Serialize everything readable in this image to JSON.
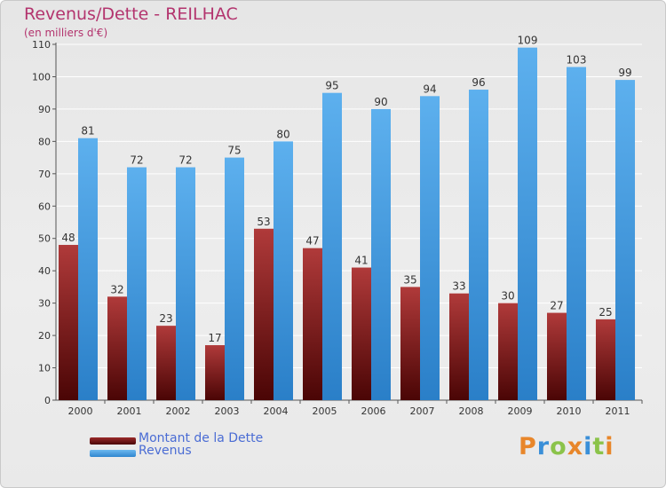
{
  "chart_data": {
    "type": "bar",
    "title": "Revenus/Dette - REILHAC",
    "subtitle": "(en milliers d'€)",
    "categories": [
      "2000",
      "2001",
      "2002",
      "2003",
      "2004",
      "2005",
      "2006",
      "2007",
      "2008",
      "2009",
      "2010",
      "2011"
    ],
    "series": [
      {
        "name": "Montant de la Dette",
        "color": "#7a1a1a",
        "values": [
          48,
          32,
          23,
          17,
          53,
          47,
          41,
          35,
          33,
          30,
          27,
          25
        ]
      },
      {
        "name": "Revenus",
        "color": "#4aa3e6",
        "values": [
          81,
          72,
          72,
          75,
          80,
          95,
          90,
          94,
          96,
          109,
          103,
          99
        ]
      }
    ],
    "y_ticks": [
      0,
      10,
      20,
      30,
      40,
      50,
      60,
      70,
      80,
      90,
      100,
      110
    ],
    "ylim": [
      0,
      110
    ],
    "grid": true,
    "legend_position": "bottom-left"
  },
  "logo": {
    "text": "Proxiti",
    "letter_colors": [
      "#e8862a",
      "#3a8fd8",
      "#8bc34a",
      "#e8862a",
      "#3a8fd8",
      "#8bc34a",
      "#e8862a"
    ]
  }
}
